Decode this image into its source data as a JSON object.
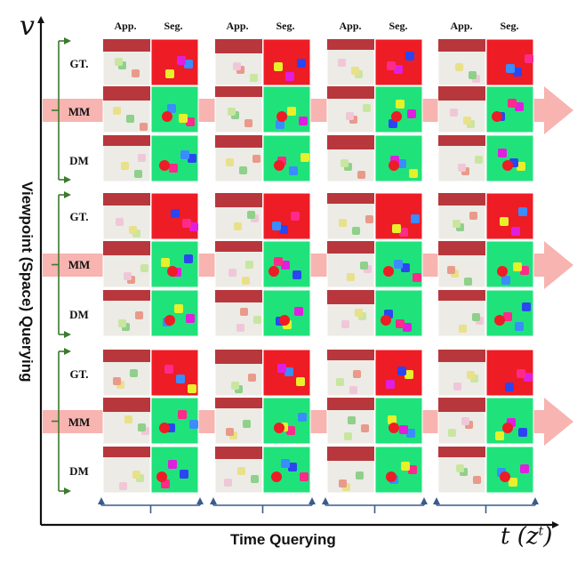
{
  "axes": {
    "y_var": "v",
    "x_var": "t (z",
    "x_sup": "t",
    "x_close": ")",
    "y_label": "Viewpoint (Space) Querying",
    "x_label": "Time Querying"
  },
  "column_headers": {
    "app": "App.",
    "seg": "Seg."
  },
  "row_labels": {
    "gt": "GT.",
    "mm": "MM",
    "dm": "DM"
  },
  "colors": {
    "highlight_band": "#f7b4b0",
    "bracket_green": "#3c7a2e",
    "bracket_blue": "#3a5a8f",
    "seg_red": "#ee1c25",
    "seg_green": "#1fe37a",
    "app_floor": "#ecebe6",
    "app_wall": "#b8373c"
  }
}
